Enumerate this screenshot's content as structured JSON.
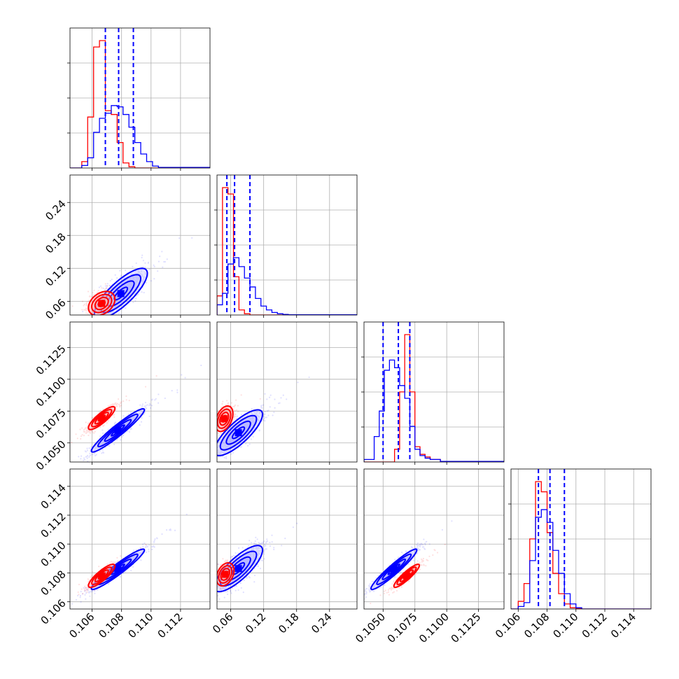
{
  "colors": {
    "red": "#ff0000",
    "blue": "#0000ff",
    "red_light": "#ffb3b3",
    "blue_light": "#b3b3ff"
  },
  "chart_data": {
    "type": "corner",
    "parameters": 4,
    "series": [
      {
        "name": "",
        "color": "#ff0000"
      },
      {
        "name": "",
        "color": "#0000ff"
      }
    ],
    "grid": true,
    "axis_ranges": [
      [
        0.1045,
        0.114
      ],
      [
        0.035,
        0.29
      ],
      [
        0.1035,
        0.1145
      ],
      [
        0.1055,
        0.1152
      ]
    ],
    "tick_values": {
      "p0": [
        0.106,
        0.108,
        0.11,
        0.112
      ],
      "p1": [
        0.06,
        0.12,
        0.18,
        0.24
      ],
      "p2": [
        0.105,
        0.1075,
        0.11,
        0.1125
      ],
      "p3": [
        0.106,
        0.108,
        0.11,
        0.112,
        0.114
      ]
    },
    "tick_labels": {
      "p0": [
        "0.106",
        "0.108",
        "0.110",
        "0.112"
      ],
      "p1": [
        "0.06",
        "0.12",
        "0.18",
        "0.24"
      ],
      "p2": [
        "0.1050",
        "0.1075",
        "0.1100",
        "0.1125"
      ],
      "p3": [
        "0.106",
        "0.108",
        "0.110",
        "0.112",
        "0.114"
      ]
    },
    "marginals": [
      {
        "param": 0,
        "quantiles_blue": [
          0.1069,
          0.1078,
          0.1088
        ],
        "bin_edges": [
          0.1045,
          0.1049,
          0.1053,
          0.1057,
          0.1061,
          0.1065,
          0.1069,
          0.1073,
          0.1077,
          0.1081,
          0.1085,
          0.1089,
          0.1093,
          0.1097,
          0.1101,
          0.1105,
          0.114
        ],
        "red": [
          0,
          0,
          0.05,
          0.4,
          0.95,
          1.0,
          0.45,
          0.42,
          0.2,
          0.04,
          0.01,
          0,
          0,
          0,
          0,
          0
        ],
        "blue": [
          0,
          0,
          0.02,
          0.08,
          0.28,
          0.39,
          0.43,
          0.49,
          0.48,
          0.42,
          0.32,
          0.2,
          0.11,
          0.05,
          0.015,
          0.005
        ]
      },
      {
        "param": 1,
        "quantiles_blue": [
          0.053,
          0.067,
          0.095
        ],
        "bin_edges": [
          0.035,
          0.045,
          0.055,
          0.065,
          0.075,
          0.085,
          0.095,
          0.105,
          0.115,
          0.125,
          0.135,
          0.145,
          0.155,
          0.165,
          0.29
        ],
        "red": [
          0.15,
          1.0,
          0.95,
          0.3,
          0.04,
          0.01,
          0,
          0,
          0,
          0,
          0,
          0,
          0,
          0
        ],
        "blue": [
          0.08,
          0.17,
          0.4,
          0.45,
          0.38,
          0.29,
          0.22,
          0.13,
          0.07,
          0.04,
          0.02,
          0.01,
          0.005,
          0.002
        ]
      },
      {
        "param": 2,
        "quantiles_blue": [
          0.105,
          0.1062,
          0.1071
        ],
        "bin_edges": [
          0.1035,
          0.1043,
          0.1047,
          0.1051,
          0.1055,
          0.1059,
          0.1063,
          0.1067,
          0.1071,
          0.1075,
          0.1079,
          0.1083,
          0.1087,
          0.1095,
          0.1145
        ],
        "red": [
          0,
          0,
          0,
          0,
          0,
          0.1,
          0.55,
          1.0,
          0.55,
          0.12,
          0.06,
          0.04,
          0.02,
          0.005
        ],
        "blue": [
          0.02,
          0.2,
          0.4,
          0.72,
          0.8,
          0.74,
          0.6,
          0.5,
          0.28,
          0.1,
          0.05,
          0.03,
          0.02,
          0.005
        ]
      },
      {
        "param": 3,
        "quantiles_blue": [
          0.1074,
          0.1082,
          0.1092
        ],
        "bin_edges": [
          0.1055,
          0.106,
          0.1064,
          0.1068,
          0.1072,
          0.1076,
          0.108,
          0.1084,
          0.1088,
          0.1092,
          0.1096,
          0.11,
          0.1104,
          0.1152
        ],
        "red": [
          0,
          0.06,
          0.2,
          0.55,
          1.0,
          0.92,
          0.6,
          0.28,
          0.12,
          0.04,
          0.01,
          0.005,
          0
        ],
        "blue": [
          0,
          0.02,
          0.05,
          0.38,
          0.72,
          0.78,
          0.68,
          0.46,
          0.28,
          0.12,
          0.04,
          0.01,
          0
        ]
      }
    ],
    "joints": [
      {
        "x_param": 0,
        "y_param": 1,
        "rho_red": 0.35,
        "rho_blue": 0.8,
        "red": {
          "mx": 0.10665,
          "my": 0.056,
          "sx": 0.00045,
          "sy": 0.011
        },
        "blue": {
          "mx": 0.10795,
          "my": 0.074,
          "sx": 0.0009,
          "sy": 0.023
        }
      },
      {
        "x_param": 0,
        "y_param": 2,
        "rho_red": 0.85,
        "rho_blue": 0.95,
        "red": {
          "mx": 0.10665,
          "my": 0.10695,
          "sx": 0.00045,
          "sy": 0.00045
        },
        "blue": {
          "mx": 0.10775,
          "my": 0.10598,
          "sx": 0.0009,
          "sy": 0.00085
        }
      },
      {
        "x_param": 0,
        "y_param": 3,
        "rho_red": 0.85,
        "rho_blue": 0.95,
        "red": {
          "mx": 0.10665,
          "my": 0.1078,
          "sx": 0.00045,
          "sy": 0.0004
        },
        "blue": {
          "mx": 0.10775,
          "my": 0.10825,
          "sx": 0.0009,
          "sy": 0.0007
        }
      },
      {
        "x_param": 1,
        "y_param": 2,
        "rho_red": 0.4,
        "rho_blue": 0.8,
        "red": {
          "mx": 0.048,
          "my": 0.1069,
          "sx": 0.008,
          "sy": 0.0005
        },
        "blue": {
          "mx": 0.074,
          "my": 0.1058,
          "sx": 0.022,
          "sy": 0.0009
        }
      },
      {
        "x_param": 1,
        "y_param": 3,
        "rho_red": 0.35,
        "rho_blue": 0.8,
        "red": {
          "mx": 0.05,
          "my": 0.1079,
          "sx": 0.008,
          "sy": 0.0004
        },
        "blue": {
          "mx": 0.074,
          "my": 0.1083,
          "sx": 0.022,
          "sy": 0.0008
        }
      },
      {
        "x_param": 2,
        "y_param": 3,
        "rho_red": 0.9,
        "rho_blue": 0.95,
        "red": {
          "mx": 0.10685,
          "my": 0.1078,
          "sx": 0.0005,
          "sy": 0.0004
        },
        "blue": {
          "mx": 0.10585,
          "my": 0.10825,
          "sx": 0.0009,
          "sy": 0.0007
        }
      }
    ]
  }
}
